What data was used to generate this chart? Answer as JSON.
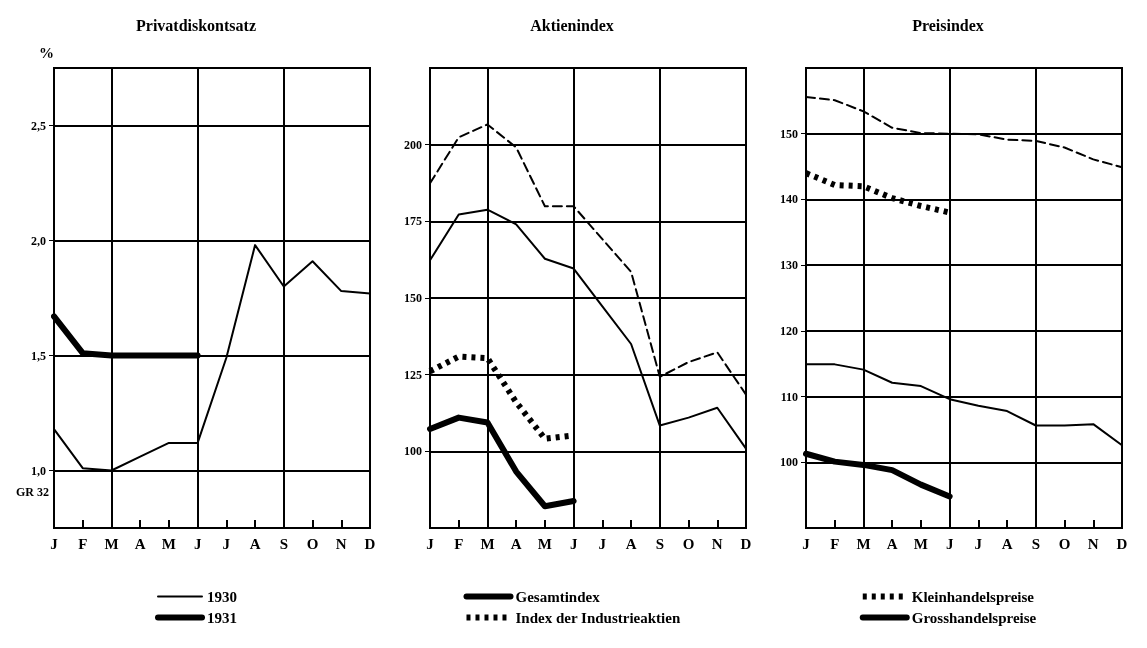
{
  "chart_data": [
    {
      "type": "line",
      "title": "Privatdiskontsatz",
      "ylabel": "%",
      "categories": [
        "J",
        "F",
        "M",
        "A",
        "M",
        "J",
        "J",
        "A",
        "S",
        "O",
        "N",
        "D"
      ],
      "ylim": [
        0.75,
        2.75
      ],
      "yticks": [
        {
          "value": 1.0,
          "label": "1,0"
        },
        {
          "value": 1.5,
          "label": "1,5"
        },
        {
          "value": 2.0,
          "label": "2,0"
        },
        {
          "value": 2.5,
          "label": "2,5"
        }
      ],
      "grid": true,
      "legend": "bottom",
      "marker": "none",
      "annotations": [
        "GR 32"
      ],
      "series": [
        {
          "name": "1930",
          "color": "#000000",
          "line_style": "solid",
          "values": [
            1.18,
            1.01,
            1.0,
            1.06,
            1.12,
            1.12,
            1.49,
            1.98,
            1.8,
            1.91,
            1.78,
            1.77
          ]
        },
        {
          "name": "1931",
          "color": "#000000",
          "line_style": "solid",
          "values": [
            1.67,
            1.51,
            1.5,
            1.5,
            1.5,
            1.5,
            null,
            null,
            null,
            null,
            null,
            null
          ]
        }
      ]
    },
    {
      "type": "line",
      "title": "Aktienindex",
      "categories": [
        "J",
        "F",
        "M",
        "A",
        "M",
        "J",
        "J",
        "A",
        "S",
        "O",
        "N",
        "D"
      ],
      "ylim": [
        75,
        225
      ],
      "yticks": [
        100,
        125,
        150,
        175,
        200
      ],
      "grid": true,
      "legend": "bottom",
      "marker": "none",
      "series": [
        {
          "name": "Gesamtindex",
          "color": "#000000",
          "line_style": "solid",
          "values": [
            107.3,
            111,
            109.4,
            93.4,
            82.1,
            83.8,
            null,
            null,
            null,
            null,
            null,
            null
          ]
        },
        {
          "name": "Index der Industrieaktien",
          "color": "#000000",
          "line_style": "dotted",
          "values": [
            126.1,
            130.9,
            130.4,
            116,
            104.1,
            105.2,
            null,
            null,
            null,
            null,
            null,
            null
          ]
        },
        {
          "color": "#000000",
          "line_style": "solid",
          "values": [
            162.3,
            177.2,
            178.8,
            174,
            162.8,
            159.6,
            147.3,
            135,
            108.4,
            111,
            114.2,
            100.9
          ]
        },
        {
          "color": "#000000",
          "line_style": "dashed",
          "values": [
            187.4,
            202.4,
            206.6,
            199.1,
            179.9,
            179.9,
            169.2,
            158.5,
            124.3,
            129.1,
            132.3,
            118.5
          ]
        }
      ]
    },
    {
      "type": "line",
      "title": "Preisindex",
      "categories": [
        "J",
        "F",
        "M",
        "A",
        "M",
        "J",
        "J",
        "A",
        "S",
        "O",
        "N",
        "D"
      ],
      "ylim": [
        90,
        160
      ],
      "yticks": [
        100,
        110,
        120,
        130,
        140,
        150
      ],
      "grid": true,
      "legend": "bottom",
      "marker": "none",
      "series": [
        {
          "name": "Kleinhandelspreise",
          "color": "#000000",
          "line_style": "dotted",
          "values": [
            144,
            142.2,
            142,
            140.2,
            139,
            138,
            null,
            null,
            null,
            null,
            null,
            null
          ]
        },
        {
          "name": "Grosshandelspreise",
          "color": "#000000",
          "line_style": "solid",
          "values": [
            101.3,
            100.1,
            99.6,
            98.8,
            96.6,
            94.8,
            null,
            null,
            null,
            null,
            null,
            null
          ]
        },
        {
          "color": "#000000",
          "line_style": "dashed",
          "values": [
            155.6,
            155.1,
            153.4,
            150.9,
            150.1,
            150,
            149.9,
            149.1,
            148.9,
            147.9,
            146.1,
            144.9
          ]
        },
        {
          "color": "#000000",
          "line_style": "solid",
          "values": [
            114.9,
            114.9,
            114.1,
            112.1,
            111.6,
            109.6,
            108.6,
            107.8,
            105.6,
            105.6,
            105.8,
            102.6
          ]
        }
      ]
    }
  ]
}
